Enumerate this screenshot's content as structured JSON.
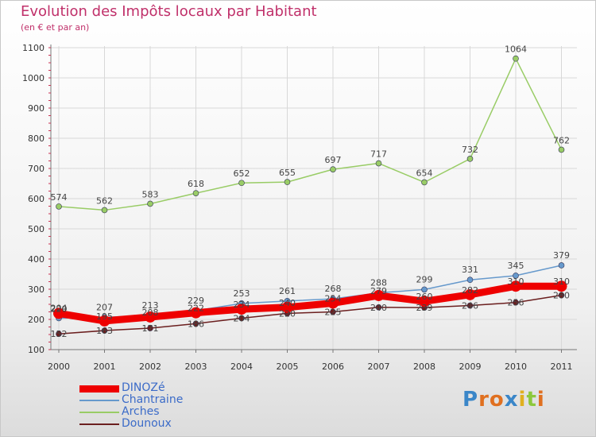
{
  "chart_data": {
    "type": "line",
    "title": "Evolution des Impôts locaux par Habitant",
    "subtitle": "(en € et par an)",
    "xlabel": "",
    "ylabel": "",
    "categories": [
      "2000",
      "2001",
      "2002",
      "2003",
      "2004",
      "2005",
      "2006",
      "2007",
      "2008",
      "2009",
      "2010",
      "2011"
    ],
    "ylim": [
      100,
      1100
    ],
    "yticks": [
      "100",
      "200",
      "300",
      "400",
      "500",
      "600",
      "700",
      "800",
      "900",
      "1000",
      "1100"
    ],
    "grid": true,
    "legend_position": "bottom-left",
    "series": [
      {
        "name": "DINOZé",
        "color": "#ee0000",
        "width": 9,
        "values": [
          220,
          195,
          208,
          222,
          234,
          240,
          254,
          279,
          260,
          282,
          310,
          310
        ]
      },
      {
        "name": "Chantraine",
        "color": "#6699cc",
        "width": 1.5,
        "values": [
          204,
          207,
          213,
          229,
          253,
          261,
          268,
          288,
          299,
          331,
          345,
          379
        ]
      },
      {
        "name": "Arches",
        "color": "#99cc66",
        "width": 1.5,
        "values": [
          574,
          562,
          583,
          618,
          652,
          655,
          697,
          717,
          654,
          732,
          1064,
          762
        ]
      },
      {
        "name": "Dounoux",
        "color": "#6b1f1f",
        "width": 1.5,
        "values": [
          152,
          163,
          171,
          186,
          204,
          220,
          225,
          240,
          239,
          246,
          256,
          280
        ]
      }
    ]
  },
  "logo": {
    "text": "Proxiti",
    "letters": [
      {
        "ch": "P",
        "color": "#3a86c8"
      },
      {
        "ch": "r",
        "color": "#e07020"
      },
      {
        "ch": "o",
        "color": "#e07020"
      },
      {
        "ch": "x",
        "color": "#3a86c8"
      },
      {
        "ch": "i",
        "color": "#e0b020"
      },
      {
        "ch": "t",
        "color": "#8cc83c"
      },
      {
        "ch": "i",
        "color": "#e07020"
      }
    ]
  }
}
